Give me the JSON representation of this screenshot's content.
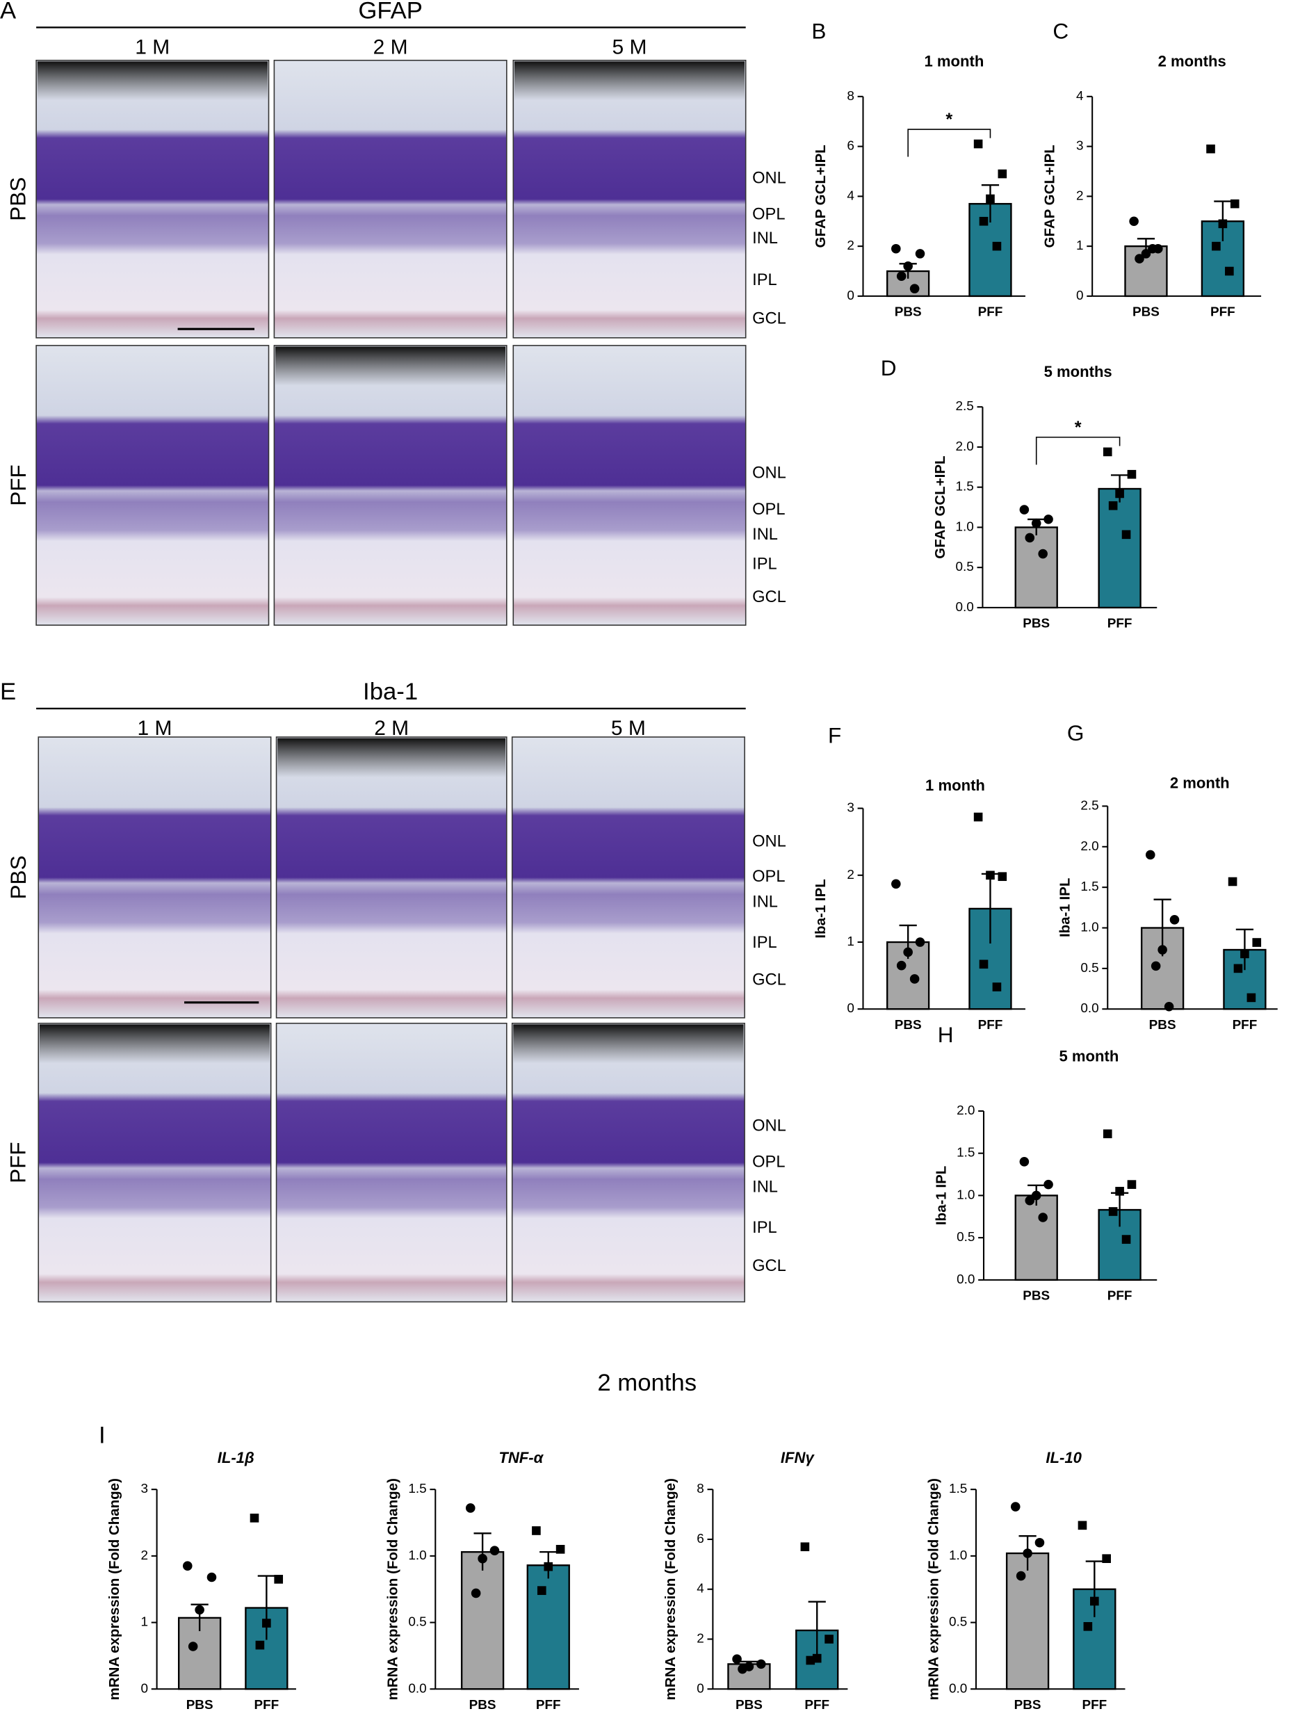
{
  "gfap": {
    "panel": "A",
    "title": "GFAP",
    "columns": [
      "1 M",
      "2 M",
      "5 M"
    ],
    "rows": [
      "PBS",
      "PFF"
    ],
    "layers": [
      "ONL",
      "OPL",
      "INL",
      "IPL",
      "GCL"
    ]
  },
  "iba": {
    "panel": "E",
    "title": "Iba-1",
    "columns": [
      "1 M",
      "2 M",
      "5 M"
    ],
    "rows": [
      "PBS",
      "PFF"
    ],
    "layers": [
      "ONL",
      "OPL",
      "INL",
      "IPL",
      "GCL"
    ]
  },
  "section": {
    "panel": "I",
    "title": "2 months"
  },
  "chart_data": [
    {
      "type": "bar",
      "panel": "B",
      "title": "1 month",
      "ylabel": "GFAP GCL+IPL",
      "categories": [
        "PBS",
        "PFF"
      ],
      "values": [
        1.0,
        3.7
      ],
      "errors": [
        0.3,
        0.75
      ],
      "points": [
        [
          1.9,
          1.7,
          1.2,
          0.8,
          0.3
        ],
        [
          6.1,
          4.9,
          3.9,
          3.0,
          2.0
        ]
      ],
      "colors": [
        "#a6a6a6",
        "#1f7a8c"
      ],
      "markers": [
        "circle",
        "square"
      ],
      "ylim": [
        0,
        8
      ],
      "yticks": [
        0,
        2,
        4,
        6,
        8
      ],
      "annotation": "*"
    },
    {
      "type": "bar",
      "panel": "C",
      "title": "2 months",
      "ylabel": "GFAP GCL+IPL",
      "categories": [
        "PBS",
        "PFF"
      ],
      "values": [
        1.0,
        1.5
      ],
      "errors": [
        0.15,
        0.4
      ],
      "points": [
        [
          1.5,
          0.95,
          0.85,
          0.75,
          0.95
        ],
        [
          2.95,
          1.85,
          1.45,
          1.0,
          0.5
        ]
      ],
      "colors": [
        "#a6a6a6",
        "#1f7a8c"
      ],
      "markers": [
        "circle",
        "square"
      ],
      "ylim": [
        0,
        4
      ],
      "yticks": [
        0,
        1,
        2,
        3,
        4
      ]
    },
    {
      "type": "bar",
      "panel": "D",
      "title": "5 months",
      "ylabel": "GFAP GCL+IPL",
      "categories": [
        "PBS",
        "PFF"
      ],
      "values": [
        1.0,
        1.48
      ],
      "errors": [
        0.1,
        0.17
      ],
      "points": [
        [
          1.22,
          1.1,
          1.05,
          0.87,
          0.67
        ],
        [
          1.94,
          1.66,
          1.42,
          1.27,
          0.91
        ]
      ],
      "colors": [
        "#a6a6a6",
        "#1f7a8c"
      ],
      "markers": [
        "circle",
        "square"
      ],
      "ylim": [
        0,
        2.5
      ],
      "yticks": [
        {
          "value": 0,
          "label": "0.0"
        },
        0.5,
        {
          "value": 1,
          "label": "1.0"
        },
        1.5,
        {
          "value": 2,
          "label": "2.0"
        },
        2.5
      ],
      "annotation": "*"
    },
    {
      "type": "bar",
      "panel": "F",
      "title": "1 month",
      "ylabel": "Iba-1 IPL",
      "categories": [
        "PBS",
        "PFF"
      ],
      "values": [
        1.0,
        1.5
      ],
      "errors": [
        0.25,
        0.52
      ],
      "points": [
        [
          1.87,
          1.0,
          0.85,
          0.65,
          0.45
        ],
        [
          2.87,
          1.98,
          2.0,
          0.67,
          0.33
        ]
      ],
      "colors": [
        "#a6a6a6",
        "#1f7a8c"
      ],
      "markers": [
        "circle",
        "square"
      ],
      "ylim": [
        0,
        3
      ],
      "yticks": [
        0,
        1,
        2,
        3
      ]
    },
    {
      "type": "bar",
      "panel": "G",
      "title": "2 month",
      "ylabel": "Iba-1 IPL",
      "categories": [
        "PBS",
        "PFF"
      ],
      "values": [
        1.0,
        0.73
      ],
      "errors": [
        0.35,
        0.25
      ],
      "points": [
        [
          1.9,
          1.1,
          0.73,
          0.53,
          0.03
        ],
        [
          1.57,
          0.82,
          0.68,
          0.5,
          0.14
        ]
      ],
      "colors": [
        "#a6a6a6",
        "#1f7a8c"
      ],
      "markers": [
        "circle",
        "square"
      ],
      "ylim": [
        0,
        2.5
      ],
      "yticks": [
        {
          "value": 0,
          "label": "0.0"
        },
        0.5,
        {
          "value": 1,
          "label": "1.0"
        },
        1.5,
        {
          "value": 2,
          "label": "2.0"
        },
        2.5
      ]
    },
    {
      "type": "bar",
      "panel": "H",
      "title": "5 month",
      "ylabel": "Iba-1  IPL",
      "categories": [
        "PBS",
        "PFF"
      ],
      "values": [
        1.0,
        0.83
      ],
      "errors": [
        0.12,
        0.2
      ],
      "points": [
        [
          1.4,
          1.13,
          1.0,
          0.94,
          0.74
        ],
        [
          1.73,
          1.13,
          1.05,
          0.81,
          0.48
        ]
      ],
      "colors": [
        "#a6a6a6",
        "#1f7a8c"
      ],
      "markers": [
        "circle",
        "square"
      ],
      "ylim": [
        0,
        2
      ],
      "yticks": [
        {
          "value": 0,
          "label": "0.0"
        },
        0.5,
        {
          "value": 1,
          "label": "1.0"
        },
        1.5,
        {
          "value": 2,
          "label": "2.0"
        }
      ]
    },
    {
      "type": "bar",
      "title": "IL-1β",
      "italic": true,
      "ylabel": "mRNA expression (Fold  Change)",
      "categories": [
        "PBS",
        "PFF"
      ],
      "values": [
        1.07,
        1.22
      ],
      "errors": [
        0.2,
        0.48
      ],
      "points": [
        [
          1.85,
          1.68,
          1.19,
          0.64
        ],
        [
          2.57,
          1.65,
          0.99,
          0.66
        ]
      ],
      "colors": [
        "#a6a6a6",
        "#1f7a8c"
      ],
      "markers": [
        "circle",
        "square"
      ],
      "ylim": [
        0,
        3
      ],
      "yticks": [
        0,
        1,
        2,
        3
      ]
    },
    {
      "type": "bar",
      "title": "TNF-α",
      "italic": true,
      "ylabel": "mRNA expression (Fold  Change)",
      "categories": [
        "PBS",
        "PFF"
      ],
      "values": [
        1.03,
        0.93
      ],
      "errors": [
        0.14,
        0.1
      ],
      "points": [
        [
          1.36,
          1.04,
          0.98,
          0.72
        ],
        [
          1.19,
          1.05,
          0.92,
          0.74
        ]
      ],
      "colors": [
        "#a6a6a6",
        "#1f7a8c"
      ],
      "markers": [
        "circle",
        "square"
      ],
      "ylim": [
        0,
        1.5
      ],
      "yticks": [
        {
          "value": 0,
          "label": "0.0"
        },
        0.5,
        {
          "value": 1,
          "label": "1.0"
        },
        1.5
      ]
    },
    {
      "type": "bar",
      "title": "IFNγ",
      "italic": true,
      "ylabel": "mRNA expression (Fold  Change)",
      "categories": [
        "PBS",
        "PFF"
      ],
      "values": [
        1.0,
        2.35
      ],
      "errors": [
        0.1,
        1.15
      ],
      "points": [
        [
          1.2,
          1.0,
          0.9,
          0.8
        ],
        [
          5.7,
          2.0,
          1.23,
          1.15
        ]
      ],
      "colors": [
        "#a6a6a6",
        "#1f7a8c"
      ],
      "markers": [
        "circle",
        "square"
      ],
      "ylim": [
        0,
        8
      ],
      "yticks": [
        0,
        2,
        4,
        6,
        8
      ]
    },
    {
      "type": "bar",
      "title": "IL-10",
      "italic": true,
      "ylabel": "mRNA expression (Fold  Change)",
      "categories": [
        "PBS",
        "PFF"
      ],
      "values": [
        1.02,
        0.75
      ],
      "errors": [
        0.13,
        0.21
      ],
      "points": [
        [
          1.37,
          1.1,
          1.02,
          0.85
        ],
        [
          1.23,
          0.98,
          0.66,
          0.47
        ]
      ],
      "colors": [
        "#a6a6a6",
        "#1f7a8c"
      ],
      "markers": [
        "circle",
        "square"
      ],
      "ylim": [
        0,
        1.5
      ],
      "yticks": [
        {
          "value": 0,
          "label": "0.0"
        },
        0.5,
        {
          "value": 1,
          "label": "1.0"
        },
        1.5
      ]
    }
  ]
}
